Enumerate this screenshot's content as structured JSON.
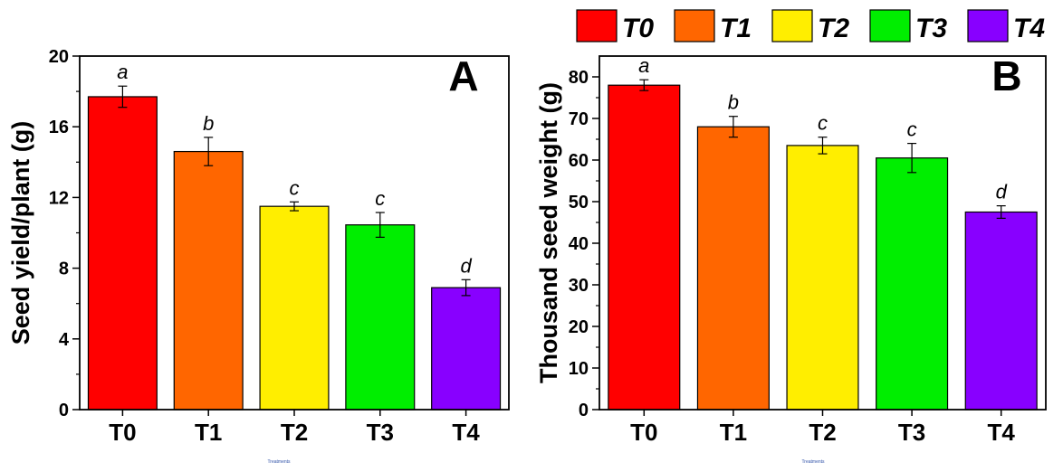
{
  "legend": {
    "items": [
      {
        "label": "T0",
        "color": "#ff0000"
      },
      {
        "label": "T1",
        "color": "#ff6600"
      },
      {
        "label": "T2",
        "color": "#ffee00"
      },
      {
        "label": "T3",
        "color": "#00ee00"
      },
      {
        "label": "T4",
        "color": "#8800ff"
      }
    ]
  },
  "chart_data": [
    {
      "type": "bar",
      "panel_label": "A",
      "categories": [
        "T0",
        "T1",
        "T2",
        "T3",
        "T4"
      ],
      "values": [
        17.7,
        14.6,
        11.5,
        10.45,
        6.9
      ],
      "errors": [
        0.6,
        0.8,
        0.25,
        0.7,
        0.45
      ],
      "letters": [
        "a",
        "b",
        "c",
        "c",
        "d"
      ],
      "colors": [
        "#ff0000",
        "#ff6600",
        "#ffee00",
        "#00ee00",
        "#8800ff"
      ],
      "ylabel": "Seed yield/plant (g)",
      "xlabel": "Treatments",
      "ylim": [
        0,
        20
      ],
      "yticks": [
        0,
        4,
        8,
        12,
        16,
        20
      ],
      "grid": false
    },
    {
      "type": "bar",
      "panel_label": "B",
      "categories": [
        "T0",
        "T1",
        "T2",
        "T3",
        "T4"
      ],
      "values": [
        78,
        68,
        63.5,
        60.5,
        47.5
      ],
      "errors": [
        1.3,
        2.5,
        2.0,
        3.5,
        1.5
      ],
      "letters": [
        "a",
        "b",
        "c",
        "c",
        "d"
      ],
      "colors": [
        "#ff0000",
        "#ff6600",
        "#ffee00",
        "#00ee00",
        "#8800ff"
      ],
      "ylabel": "Thousand seed weight (g)",
      "xlabel": "Treatments",
      "ylim": [
        0,
        85
      ],
      "yticks": [
        0,
        10,
        20,
        30,
        40,
        50,
        60,
        70,
        80
      ],
      "grid": false
    }
  ]
}
